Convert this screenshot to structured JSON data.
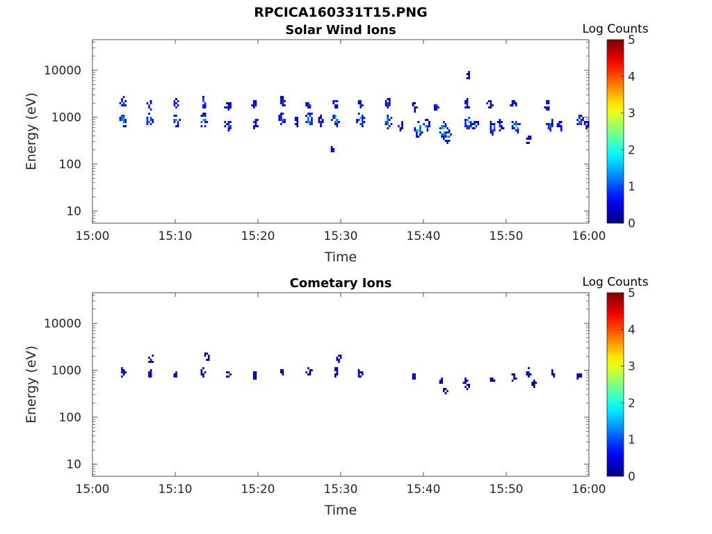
{
  "figure": {
    "title": "RPCICA160331T15.PNG"
  },
  "chart_data": [
    {
      "type": "heatmap",
      "title": "Solar Wind Ions",
      "xlabel": "Time",
      "ylabel": "Energy (eV)",
      "x_ticks": [
        "15:00",
        "15:10",
        "15:20",
        "15:30",
        "15:40",
        "15:50",
        "16:00"
      ],
      "xlim_minutes": [
        0,
        60
      ],
      "y_scale": "log",
      "y_ticks": [
        10,
        100,
        1000,
        10000
      ],
      "y_tick_labels": [
        "10",
        "100",
        "1000",
        "10000"
      ],
      "ylim": [
        5.5,
        45000
      ],
      "colorbar": {
        "label": "Log Counts",
        "range": [
          0,
          5
        ],
        "ticks": [
          "0",
          "1",
          "2",
          "3",
          "4",
          "5"
        ],
        "colormap": "jet"
      },
      "blobs": [
        {
          "t": 3.6,
          "e": 2100,
          "logc": 1.3
        },
        {
          "t": 3.6,
          "e": 900,
          "logc": 1.8
        },
        {
          "t": 6.8,
          "e": 2000,
          "logc": 1.2
        },
        {
          "t": 6.8,
          "e": 880,
          "logc": 1.7
        },
        {
          "t": 10.0,
          "e": 2100,
          "logc": 1.2
        },
        {
          "t": 10.0,
          "e": 900,
          "logc": 1.6
        },
        {
          "t": 13.3,
          "e": 2200,
          "logc": 1.3
        },
        {
          "t": 13.3,
          "e": 920,
          "logc": 1.8
        },
        {
          "t": 16.3,
          "e": 1800,
          "logc": 1.0
        },
        {
          "t": 16.3,
          "e": 700,
          "logc": 1.4
        },
        {
          "t": 19.5,
          "e": 2000,
          "logc": 1.0
        },
        {
          "t": 19.5,
          "e": 780,
          "logc": 1.2
        },
        {
          "t": 22.8,
          "e": 2300,
          "logc": 1.1
        },
        {
          "t": 22.8,
          "e": 950,
          "logc": 1.5
        },
        {
          "t": 24.5,
          "e": 800,
          "logc": 1.0
        },
        {
          "t": 26.1,
          "e": 1900,
          "logc": 1.0
        },
        {
          "t": 26.1,
          "e": 930,
          "logc": 1.9
        },
        {
          "t": 27.5,
          "e": 880,
          "logc": 1.0
        },
        {
          "t": 29.3,
          "e": 2100,
          "logc": 1.1
        },
        {
          "t": 29.3,
          "e": 960,
          "logc": 1.9
        },
        {
          "t": 28.9,
          "e": 200,
          "logc": 0.6
        },
        {
          "t": 32.3,
          "e": 2000,
          "logc": 1.1
        },
        {
          "t": 32.3,
          "e": 900,
          "logc": 1.9
        },
        {
          "t": 35.6,
          "e": 2100,
          "logc": 1.2
        },
        {
          "t": 35.6,
          "e": 840,
          "logc": 1.7
        },
        {
          "t": 37.2,
          "e": 680,
          "logc": 1.0
        },
        {
          "t": 38.8,
          "e": 1800,
          "logc": 0.9
        },
        {
          "t": 39.3,
          "e": 580,
          "logc": 2.1
        },
        {
          "t": 40.3,
          "e": 700,
          "logc": 1.5
        },
        {
          "t": 41.5,
          "e": 1800,
          "logc": 1.0
        },
        {
          "t": 42.3,
          "e": 560,
          "logc": 2.3
        },
        {
          "t": 42.8,
          "e": 420,
          "logc": 1.8
        },
        {
          "t": 45.2,
          "e": 2000,
          "logc": 1.0
        },
        {
          "t": 45.3,
          "e": 800,
          "logc": 1.9
        },
        {
          "t": 46.2,
          "e": 720,
          "logc": 1.3
        },
        {
          "t": 47.9,
          "e": 1900,
          "logc": 1.0
        },
        {
          "t": 48.3,
          "e": 620,
          "logc": 1.6
        },
        {
          "t": 49.2,
          "e": 700,
          "logc": 1.2
        },
        {
          "t": 50.8,
          "e": 2000,
          "logc": 1.0
        },
        {
          "t": 51.1,
          "e": 680,
          "logc": 1.9
        },
        {
          "t": 52.6,
          "e": 350,
          "logc": 0.9
        },
        {
          "t": 54.9,
          "e": 1900,
          "logc": 1.0
        },
        {
          "t": 55.2,
          "e": 750,
          "logc": 1.7
        },
        {
          "t": 56.4,
          "e": 700,
          "logc": 1.1
        },
        {
          "t": 58.8,
          "e": 860,
          "logc": 1.6
        },
        {
          "t": 59.6,
          "e": 750,
          "logc": 1.0
        },
        {
          "t": 45.4,
          "e": 8200,
          "logc": 0.6
        }
      ]
    },
    {
      "type": "heatmap",
      "title": "Cometary Ions",
      "xlabel": "Time",
      "ylabel": "Energy (eV)",
      "x_ticks": [
        "15:00",
        "15:10",
        "15:20",
        "15:30",
        "15:40",
        "15:50",
        "16:00"
      ],
      "xlim_minutes": [
        0,
        60
      ],
      "y_scale": "log",
      "y_ticks": [
        10,
        100,
        1000,
        10000
      ],
      "y_tick_labels": [
        "10",
        "100",
        "1000",
        "10000"
      ],
      "ylim": [
        5.5,
        45000
      ],
      "colorbar": {
        "label": "Log Counts",
        "range": [
          0,
          5
        ],
        "ticks": [
          "0",
          "1",
          "2",
          "3",
          "4",
          "5"
        ],
        "colormap": "jet"
      },
      "blobs": [
        {
          "t": 3.6,
          "e": 930,
          "logc": 0.7
        },
        {
          "t": 6.8,
          "e": 900,
          "logc": 0.8
        },
        {
          "t": 7.0,
          "e": 1800,
          "logc": 0.5
        },
        {
          "t": 9.9,
          "e": 860,
          "logc": 0.6
        },
        {
          "t": 13.2,
          "e": 940,
          "logc": 0.8
        },
        {
          "t": 13.7,
          "e": 2000,
          "logc": 0.6
        },
        {
          "t": 16.3,
          "e": 830,
          "logc": 0.6
        },
        {
          "t": 19.5,
          "e": 840,
          "logc": 0.6
        },
        {
          "t": 22.8,
          "e": 980,
          "logc": 0.6
        },
        {
          "t": 26.1,
          "e": 960,
          "logc": 0.8
        },
        {
          "t": 29.3,
          "e": 960,
          "logc": 0.7
        },
        {
          "t": 29.7,
          "e": 1950,
          "logc": 0.5
        },
        {
          "t": 32.3,
          "e": 880,
          "logc": 0.8
        },
        {
          "t": 38.8,
          "e": 760,
          "logc": 0.7
        },
        {
          "t": 42.1,
          "e": 620,
          "logc": 0.5
        },
        {
          "t": 42.5,
          "e": 380,
          "logc": 0.5
        },
        {
          "t": 44.9,
          "e": 620,
          "logc": 0.5
        },
        {
          "t": 45.3,
          "e": 480,
          "logc": 0.5
        },
        {
          "t": 48.3,
          "e": 680,
          "logc": 0.5
        },
        {
          "t": 50.8,
          "e": 750,
          "logc": 0.6
        },
        {
          "t": 52.6,
          "e": 950,
          "logc": 0.8
        },
        {
          "t": 53.2,
          "e": 560,
          "logc": 0.5
        },
        {
          "t": 55.5,
          "e": 900,
          "logc": 0.5
        },
        {
          "t": 58.7,
          "e": 840,
          "logc": 0.7
        }
      ]
    }
  ]
}
